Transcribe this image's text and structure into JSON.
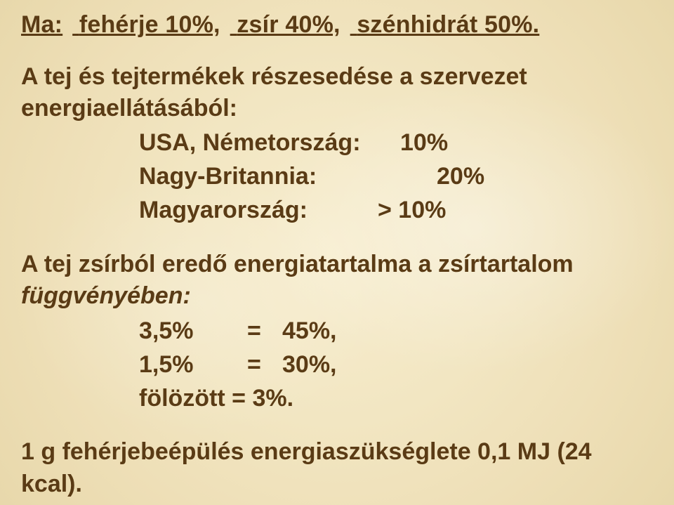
{
  "text_color": "#5a3b15",
  "background_color": "#f4e9c8",
  "font_family": "Arial",
  "font_weight": "bold",
  "base_fontsize_pt": 26,
  "title": {
    "seg1": "Ma:",
    "seg2": "fehérje 10%,",
    "seg3": "zsír 40%,",
    "seg4": "szénhidrát 50%.",
    "underline": true
  },
  "section1": {
    "lead": "A tej és tejtermékek részesedése a szervezet energiaellátásából:",
    "rows": [
      {
        "label": "USA, Németország:",
        "value": "10%"
      },
      {
        "label": "Nagy-Britannia:",
        "value": "20%"
      },
      {
        "label": "Magyarország:",
        "value": "> 10%"
      }
    ]
  },
  "section2": {
    "lead_prefix": "A tej zsírból eredő energiatartalma a zsírtartalom ",
    "lead_italic": "függvényében:",
    "rows": [
      {
        "label": "3,5%",
        "eq": "=",
        "value": "45%,"
      },
      {
        "label": "1,5%",
        "eq": "=",
        "value": "30%,"
      }
    ],
    "row_last": "fölözött =   3%."
  },
  "footer": "1 g fehérjebeépülés energiaszükséglete 0,1 MJ (24 kcal)."
}
